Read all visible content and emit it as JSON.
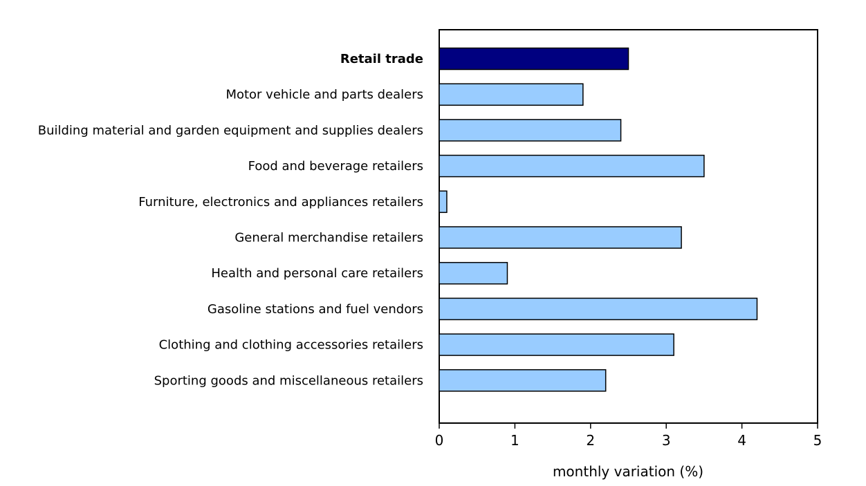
{
  "chart_data": {
    "type": "bar",
    "orientation": "horizontal",
    "categories": [
      "Retail trade",
      "Motor vehicle and parts dealers",
      "Building material and garden equipment and supplies dealers",
      "Food and beverage retailers",
      "Furniture, electronics and appliances retailers",
      "General merchandise retailers",
      "Health and personal care retailers",
      "Gasoline stations and fuel vendors",
      "Clothing and clothing accessories retailers",
      "Sporting goods and miscellaneous retailers"
    ],
    "values": [
      2.5,
      1.9,
      2.4,
      3.5,
      0.1,
      3.2,
      0.9,
      4.2,
      3.1,
      2.2
    ],
    "highlight_index": 0,
    "xlabel": "monthly variation (%)",
    "ylabel": "",
    "xlim": [
      0,
      5
    ],
    "xticks": [
      "0",
      "1",
      "2",
      "3",
      "4",
      "5"
    ],
    "grid": false,
    "colors": {
      "highlight": "#000080",
      "bar": "#99ccff",
      "outline": "#000000"
    }
  }
}
